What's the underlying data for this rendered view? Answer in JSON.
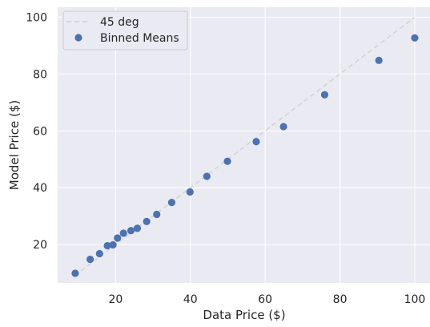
{
  "chart_data": {
    "type": "scatter",
    "title": "",
    "xlabel": "Data Price ($)",
    "ylabel": "Model Price ($)",
    "xlim": [
      4.5,
      104.5
    ],
    "ylim": [
      6.5,
      103.5
    ],
    "xticks": [
      20,
      40,
      60,
      80,
      100
    ],
    "yticks": [
      20,
      40,
      60,
      80,
      100
    ],
    "grid": true,
    "background": "#eaeaf2",
    "legend_position": "top-left",
    "series": [
      {
        "name": "45 deg",
        "kind": "line",
        "style": "dashed",
        "color": "#d3d3d3",
        "x": [
          9,
          100
        ],
        "y": [
          9,
          100
        ]
      },
      {
        "name": "Binned Means",
        "kind": "scatter",
        "color": "#4c72b0",
        "x": [
          9.2,
          13.2,
          15.7,
          17.8,
          19.3,
          20.5,
          22.1,
          24.1,
          25.8,
          28.3,
          31.0,
          35.0,
          39.9,
          44.4,
          49.9,
          57.6,
          64.9,
          75.9,
          90.4,
          100.0
        ],
        "y": [
          9.9,
          14.8,
          16.8,
          19.6,
          19.9,
          22.3,
          24.0,
          24.9,
          25.7,
          28.1,
          30.6,
          34.8,
          38.5,
          44.0,
          49.3,
          56.2,
          61.5,
          72.7,
          84.8,
          92.7
        ]
      }
    ]
  }
}
